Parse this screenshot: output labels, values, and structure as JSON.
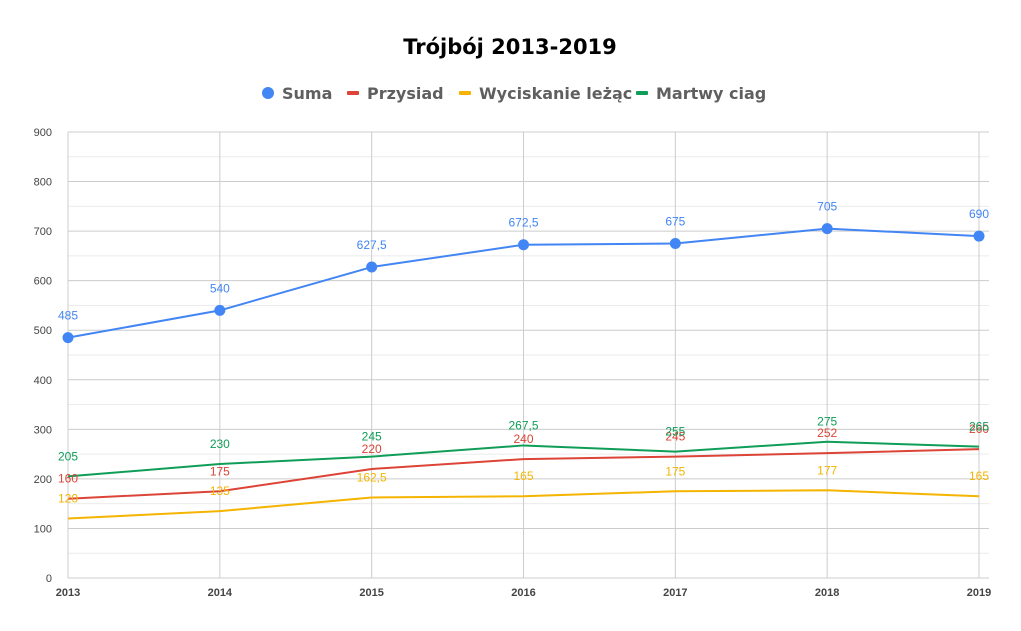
{
  "chart_data": {
    "type": "line",
    "title": "Trójbój 2013-2019",
    "categories": [
      "2013",
      "2014",
      "2015",
      "2016",
      "2017",
      "2018",
      "2019"
    ],
    "ylim": [
      0,
      900
    ],
    "yticks": [
      "0",
      "100",
      "200",
      "300",
      "400",
      "500",
      "600",
      "700",
      "800",
      "900"
    ],
    "grid": true,
    "legend_position": "top",
    "series": [
      {
        "name": "Suma",
        "color": "#4285f4",
        "marker": "circle",
        "values": [
          485,
          540,
          627.5,
          672.5,
          675,
          705,
          690
        ],
        "labels": [
          "485",
          "540",
          "627,5",
          "672,5",
          "675",
          "705",
          "690"
        ]
      },
      {
        "name": "Przysiad",
        "color": "#db4437",
        "marker": "none",
        "values": [
          160,
          175,
          220,
          240,
          245,
          252,
          260
        ],
        "labels": [
          "160",
          "175",
          "220",
          "240",
          "245",
          "252",
          "260"
        ]
      },
      {
        "name": "Wyciskanie leżąc",
        "color": "#f4b400",
        "marker": "none",
        "values": [
          120,
          135,
          162.5,
          165,
          175,
          177,
          165
        ],
        "labels": [
          "120",
          "135",
          "162,5",
          "165",
          "175",
          "177",
          "165"
        ]
      },
      {
        "name": "Martwy ciag",
        "color": "#0f9d58",
        "marker": "none",
        "values": [
          205,
          230,
          245,
          267.5,
          255,
          275,
          265
        ],
        "labels": [
          "205",
          "230",
          "245",
          "267,5",
          "255",
          "275",
          "265"
        ]
      }
    ]
  }
}
